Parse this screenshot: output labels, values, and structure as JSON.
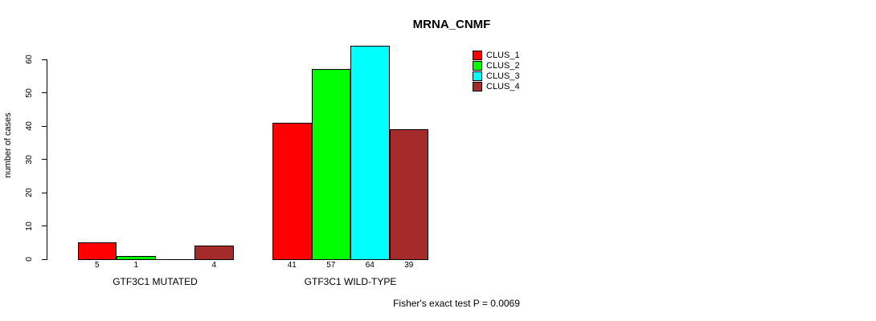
{
  "title": "MRNA_CNMF",
  "footer": "Fisher's exact test P = 0.0069",
  "chart_data": {
    "type": "bar",
    "title": "MRNA_CNMF",
    "xlabel": "",
    "ylabel": "number of cases",
    "ylim": [
      0,
      60
    ],
    "yticks": [
      0,
      10,
      20,
      30,
      40,
      50,
      60
    ],
    "grid": false,
    "legend_position": "top-right-inside",
    "categories": [
      "GTF3C1 MUTATED",
      "GTF3C1 WILD-TYPE"
    ],
    "series": [
      {
        "name": "CLUS_1",
        "color": "#FF0000",
        "values": [
          5,
          41
        ]
      },
      {
        "name": "CLUS_2",
        "color": "#00FF00",
        "values": [
          1,
          57
        ]
      },
      {
        "name": "CLUS_3",
        "color": "#00FFFF",
        "values": [
          0,
          64
        ]
      },
      {
        "name": "CLUS_4",
        "color": "#A52A2A",
        "values": [
          4,
          39
        ]
      }
    ],
    "bar_value_labels": [
      [
        "5",
        "1",
        "",
        "4"
      ],
      [
        "41",
        "57",
        "64",
        "39"
      ]
    ],
    "annotation": "Fisher's exact test P = 0.0069",
    "bar_border_color": "#000000",
    "text_color": "#000000",
    "background_color": "#FFFFFF"
  }
}
